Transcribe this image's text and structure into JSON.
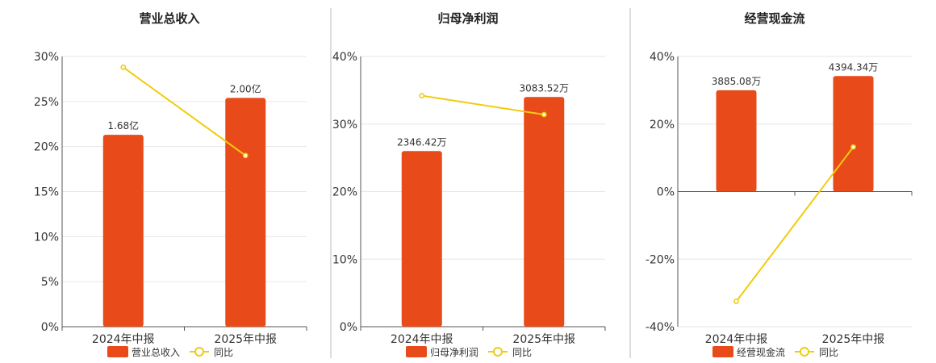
{
  "colors": {
    "bar": "#e84a1a",
    "line": "#f0cc0f",
    "divider": "#bbbbbb"
  },
  "chart_data": [
    {
      "type": "bar",
      "title": "营业总收入",
      "categories": [
        "2024年中报",
        "2025年中报"
      ],
      "ylim": [
        0,
        30
      ],
      "yticks": [
        "0%",
        "5%",
        "10%",
        "15%",
        "20%",
        "25%",
        "30%"
      ],
      "bar_values": [
        21.3,
        25.4
      ],
      "bar_labels": [
        "1.68亿",
        "2.00亿"
      ],
      "line_values": [
        28.8,
        19.0
      ],
      "legend": [
        "营业总收入",
        "同比"
      ]
    },
    {
      "type": "bar",
      "title": "归母净利润",
      "categories": [
        "2024年中报",
        "2025年中报"
      ],
      "ylim": [
        0,
        40
      ],
      "yticks": [
        "0%",
        "10%",
        "20%",
        "30%",
        "40%"
      ],
      "bar_values": [
        26.0,
        34.0
      ],
      "bar_labels": [
        "2346.42万",
        "3083.52万"
      ],
      "line_values": [
        34.2,
        31.4
      ],
      "legend": [
        "归母净利润",
        "同比"
      ]
    },
    {
      "type": "bar",
      "title": "经营现金流",
      "categories": [
        "2024年中报",
        "2025年中报"
      ],
      "ylim": [
        -40,
        40
      ],
      "yticks": [
        "-40%",
        "-20%",
        "0%",
        "20%",
        "40%"
      ],
      "bar_values": [
        30.0,
        34.2
      ],
      "bar_labels": [
        "3885.08万",
        "4394.34万"
      ],
      "line_values": [
        -32.5,
        13.2
      ],
      "legend": [
        "经营现金流",
        "同比"
      ]
    }
  ]
}
